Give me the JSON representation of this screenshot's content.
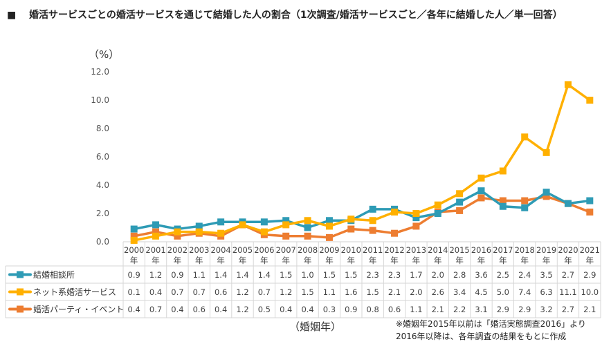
{
  "title_bullet": "■",
  "title": "婚活サービスごとの婚活サービスを通じて結婚した人の割合（1次調査/婚活サービスごと／各年に結婚した人／単一回答）",
  "note_line1": "※婚姻年2015年以前は「婚活実態調査2016」より",
  "note_line2": "2016年以降は、各年調査の結果をもとに作成",
  "chart_data": {
    "type": "line",
    "ylabel": "（%）",
    "xlabel": "（婚姻年）",
    "ylim": [
      0,
      12
    ],
    "yticks": [
      "0.0",
      "2.0",
      "4.0",
      "6.0",
      "8.0",
      "10.0",
      "12.0"
    ],
    "grid": false,
    "legend": "data-table-left",
    "categories": [
      "2000",
      "2001",
      "2002",
      "2003",
      "2004",
      "2005",
      "2006",
      "2007",
      "2008",
      "2009",
      "2010",
      "2011",
      "2012",
      "2013",
      "2014",
      "2015",
      "2016",
      "2017",
      "2018",
      "2019",
      "2020",
      "2021"
    ],
    "category_suffix": "年",
    "series": [
      {
        "name": "結婚相談所",
        "color": "#2E9BB5",
        "values": [
          0.9,
          1.2,
          0.9,
          1.1,
          1.4,
          1.4,
          1.4,
          1.5,
          1.0,
          1.5,
          1.5,
          2.3,
          2.3,
          1.7,
          2.0,
          2.8,
          3.6,
          2.5,
          2.4,
          3.5,
          2.7,
          2.9
        ]
      },
      {
        "name": "ネット系婚活サービス",
        "color": "#FFB000",
        "values": [
          0.1,
          0.4,
          0.7,
          0.7,
          0.6,
          1.2,
          0.7,
          1.2,
          1.5,
          1.1,
          1.6,
          1.5,
          2.1,
          2.0,
          2.6,
          3.4,
          4.5,
          5.0,
          7.4,
          6.3,
          11.1,
          10.0
        ]
      },
      {
        "name": "婚活パーティ・イベント",
        "color": "#ED7D31",
        "values": [
          0.4,
          0.7,
          0.4,
          0.6,
          0.4,
          1.2,
          0.5,
          0.4,
          0.4,
          0.3,
          0.9,
          0.8,
          0.6,
          1.1,
          2.1,
          2.2,
          3.1,
          2.9,
          2.9,
          3.2,
          2.7,
          2.1
        ]
      }
    ]
  }
}
